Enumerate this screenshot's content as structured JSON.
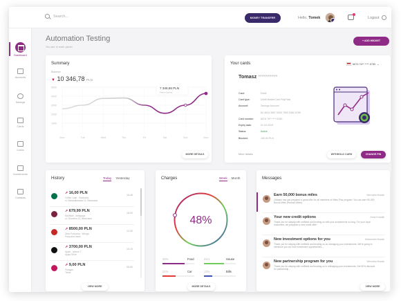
{
  "topbar": {
    "search_placeholder": "Search...",
    "money_transfer": "MONEY TRANSFER",
    "hello_prefix": "Hello,",
    "user_name": "Tomek",
    "logout": "Logout"
  },
  "sidebar": {
    "items": [
      {
        "label": "Dashboard"
      },
      {
        "label": "Accounts"
      },
      {
        "label": "Savings"
      },
      {
        "label": "Cards"
      },
      {
        "label": "Loans"
      },
      {
        "label": "Investments"
      },
      {
        "label": "Contacts"
      }
    ]
  },
  "page": {
    "title": "Automation Testing",
    "subtitle": "You are in main panel",
    "add_widget": "+ ADD WIDGET"
  },
  "summary": {
    "title": "Summary",
    "balance_label": "Balance",
    "balance": "10 346,78",
    "currency": "PLN",
    "tooltip_value": "7 346,55 PLN",
    "tooltip_sub": "Ferris Gomes",
    "more": "MORE DETAILS",
    "chart_data": {
      "type": "line",
      "ylim": [
        0,
        5000
      ],
      "yticks": [
        "5000",
        "4000",
        "3000",
        "2000",
        "1000"
      ],
      "x": [
        "Mon",
        "Tue",
        "Wed",
        "Thu",
        "Fri",
        "Sat",
        "Sun",
        "Mon"
      ],
      "series": [
        {
          "values": [
            2600,
            3000,
            3750,
            3800,
            3000,
            2100,
            3000,
            4300
          ]
        }
      ]
    }
  },
  "cards": {
    "title": "Your cards",
    "card_select": "6876 76** **** 6789",
    "owner": "Tomasz",
    "owner_masked": "**********",
    "rows": [
      {
        "k": "Card:",
        "v": "Debit"
      },
      {
        "k": "Card type:",
        "v": "Debit MasterCard PayPass"
      },
      {
        "k": "Account:",
        "v": "Savings Account"
      },
      {
        "k": "",
        "v": "64 4634 3567 0000 7890 5462 6789"
      },
      {
        "k": "Card number:",
        "v": "6876 76** **** 6789"
      },
      {
        "k": "Expiry date:",
        "v": "01.03.2019"
      },
      {
        "k": "Status:",
        "v": "Active"
      },
      {
        "k": "Blocked:",
        "v": "150,00 PLN"
      }
    ],
    "more": "More details",
    "withhold": "WITHHOLD CARD",
    "change_pin": "CHANGE PIN"
  },
  "history": {
    "title": "History",
    "tab_today": "Today",
    "tab_yesterday": "Yesterday",
    "items": [
      {
        "amount": "16,00 PLN",
        "line1": "Coffee Latte - Starbucks",
        "line2": "ul. Marszałkowska 14, Warszawa",
        "time": "18:45",
        "color": "#00704a"
      },
      {
        "amount": "679,99 PLN",
        "line1": "McMillan - delegacja",
        "line2": "ul. Chmielna 14, Warszawa",
        "time": "16:20",
        "color": "#7a2140"
      },
      {
        "amount": "8500,00 PLN",
        "line1": "Złota Pożyczka - Wonga",
        "line2": "Pożyczka rataln",
        "time": "12:30",
        "color": "#c62828"
      },
      {
        "amount": "3700,00 PLN",
        "line1": "Apple - Iphone 7",
        "line2": "Apple Store",
        "time": "10:15",
        "color": "#111111"
      },
      {
        "amount": "9,00 PLN",
        "line1": "Paragon",
        "line2": "Ticket",
        "time": "08:50",
        "color": "#c2185b"
      }
    ],
    "view_more": "VIEW MORE"
  },
  "charges": {
    "title": "Charges",
    "tab_week": "Week",
    "tab_month": "Month",
    "percent": "48%",
    "rows": [
      {
        "pct": "35%",
        "name": "Food",
        "pct2": "31%",
        "name2": "House",
        "value1": 35,
        "value2": 31,
        "color1": "#8f2a86",
        "color2": "#6fcf5a"
      },
      {
        "pct": "21%",
        "name": "Car",
        "pct2": "13%",
        "name2": "Bills",
        "value1": 21,
        "value2": 13,
        "color1": "#e53935",
        "color2": "#3f51b5"
      }
    ],
    "more": "MORE DETAILS"
  },
  "messages": {
    "title": "Messages",
    "items": [
      {
        "title": "Earn 50,000 bonus miles",
        "text": "Citibank has just prepared a great offer for all members of Miles Plus program. You can earn 50,000 Bonus Miles (Reward Miles).",
        "from": "Weronika Nowak"
      },
      {
        "title": "Your new credit options",
        "text": "Thank you for staying with smBank and trusting us with your investments so long. For your loyal customers, we prepared a new credit offer!",
        "from": "Anna Kowalik"
      },
      {
        "title": "New investment options for you",
        "text": "Thank you for staying with smBank and trusting us on managing your investments. We're going to introduce you our new investment opportunities...",
        "from": "Aleksandra Nowak"
      },
      {
        "title": "New partnership program for you",
        "text": "Thank you for staying with smBank and trusting us in managing your investments. Get 50% discount for partnership...",
        "from": "Weronika Nowak"
      }
    ],
    "view_more": "VIEW MORE"
  }
}
